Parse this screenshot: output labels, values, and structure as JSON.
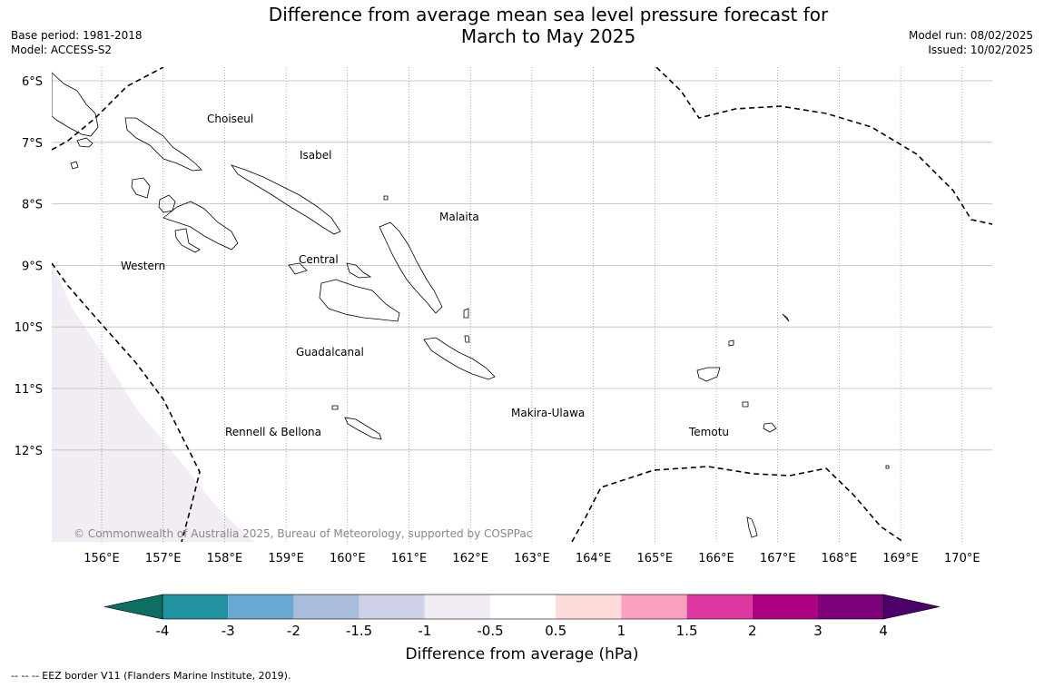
{
  "title_line1": "Difference from average mean sea level pressure forecast for",
  "title_line2": "March to May 2025",
  "base_period": "Base period: 1981-2018",
  "model": "Model: ACCESS-S2",
  "model_run": "Model run: 08/02/2025",
  "issued": "Issued: 10/02/2025",
  "copyright": "© Commonwealth of Australia 2025, Bureau of Meteorology, supported by COSPPac",
  "footer": "--  --  -- EEZ border V11 (Flanders Marine Institute, 2019).",
  "lat_labels": [
    "6°S",
    "7°S",
    "8°S",
    "9°S",
    "10°S",
    "11°S",
    "12°S"
  ],
  "lon_labels": [
    "156°E",
    "157°E",
    "158°E",
    "159°E",
    "160°E",
    "161°E",
    "162°E",
    "163°E",
    "164°E",
    "165°E",
    "166°E",
    "167°E",
    "168°E",
    "169°E",
    "170°E"
  ],
  "regions": [
    "Choiseul",
    "Isabel",
    "Malaita",
    "Western",
    "Central",
    "Guadalcanal",
    "Makira-Ulawa",
    "Rennell & Bellona",
    "Temotu"
  ],
  "colorbar": {
    "label": "Difference from average (hPa)",
    "ticks": [
      "-4",
      "-3",
      "-2",
      "-1.5",
      "-1",
      "-0.5",
      "0.5",
      "1",
      "1.5",
      "2",
      "3",
      "4"
    ],
    "colors": [
      "#0d6e61",
      "#2193a0",
      "#68a8d2",
      "#a8bcdb",
      "#cfd1e6",
      "#f2edf5",
      "#ffffff",
      "#fedcdc",
      "#f9a1bf",
      "#dd38a1",
      "#ad0082",
      "#7b0079",
      "#4c0069"
    ]
  }
}
